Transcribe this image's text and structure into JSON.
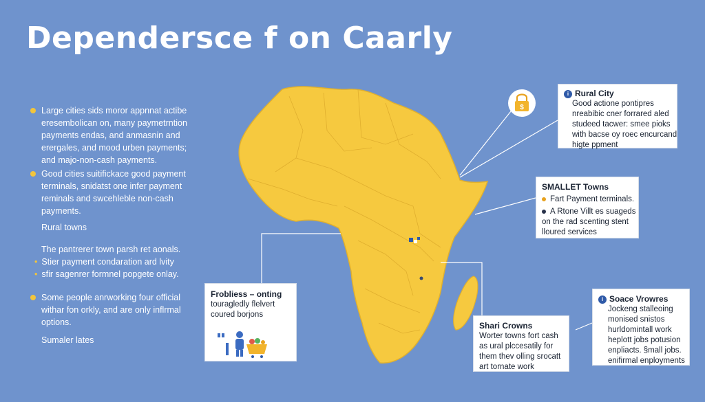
{
  "title": "Dependersce f on Caarly",
  "left_panel": {
    "block1": [
      "Large cities sids moror appnnat actibe",
      "eresembolican on, many paymetrntion",
      "payments endas, and anmasnin and",
      "erergales, and mood urben payments;",
      "and majo-non-cash payments."
    ],
    "block2": [
      "Good cities suitifickace good payment",
      "terminals, snidatst one infer payment",
      "reminals and swcehleble non-cash",
      "payments."
    ],
    "rural_towns_label": "Rural towns",
    "rural_towns_desc": "The pantrerer town parsh ret aonals.",
    "sub_items": [
      "Stier payment condaration ard lvity",
      "sfir sagenrer formnel popgete onlay."
    ],
    "block3": [
      "Some people anrworking four official",
      "withar fon orkly, and are only inflrmal",
      "options."
    ],
    "smaller_rates": "Sumaler lates"
  },
  "cards": {
    "rural_city": {
      "icon": "info-icon",
      "title": "Rural City",
      "lines": [
        "Good actione pontipres",
        "nreabibic cner forrared aled",
        "studeed tacwer: smee pioks",
        "with bacse oy roec encurcand",
        "higte ppment"
      ]
    },
    "smaller_towns": {
      "title": "SMALLET Towns",
      "items": [
        "Fart Payment terminals.",
        "A Rtone Villt es suageds"
      ],
      "extra_lines": [
        "on the rad scenting stent",
        "lloured services"
      ]
    },
    "problems": {
      "title": "Frobliess – onting",
      "lines": [
        "touragledly flelvert",
        "coured borjons"
      ]
    },
    "shari_crowns": {
      "title": "Shari Crowns",
      "lines": [
        "Worter towns fort cash",
        "as ural plccesatily for",
        "them thev olling srocatt",
        "art tornate work"
      ]
    },
    "soace_vrowres": {
      "icon": "info-icon",
      "title": "Soace Vrowres",
      "lines": [
        "Jockeng stalleoing",
        "monised snistos",
        "hurldomintall work",
        "heplott jobs potusion",
        "enpliacts. §mall jobs.",
        "enifirmal enployments"
      ]
    }
  },
  "colors": {
    "background": "#6f93cd",
    "map_fill": "#f6c93f",
    "accent_dot": "#f2c53c",
    "card_bg": "#ffffff"
  }
}
